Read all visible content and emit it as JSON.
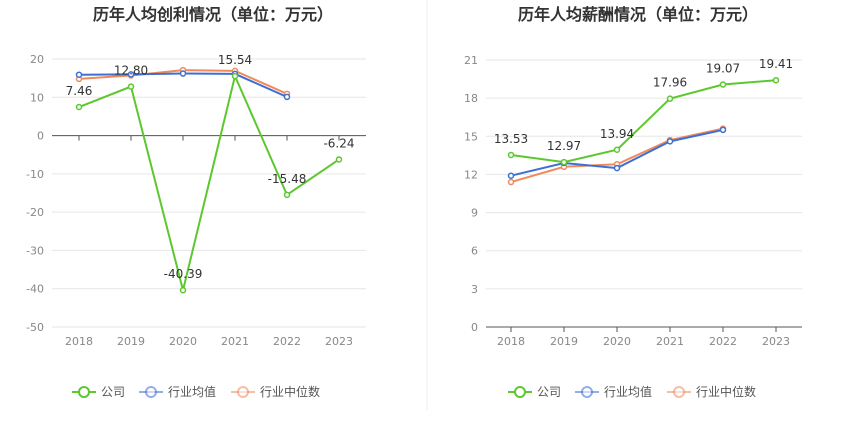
{
  "chart_data": [
    {
      "type": "line",
      "title": "历年人均创利情况（单位：万元）",
      "categories": [
        "2018",
        "2019",
        "2020",
        "2021",
        "2022",
        "2023"
      ],
      "ylim": [
        -50,
        20
      ],
      "yticks": [
        "20",
        "10",
        "0",
        "-10",
        "-20",
        "-30",
        "-40",
        "-50"
      ],
      "grid": true,
      "legend_position": "bottom",
      "series": [
        {
          "name": "公司",
          "color": "#5cc82e",
          "values": [
            7.46,
            12.8,
            -40.39,
            15.54,
            -15.48,
            -6.24
          ],
          "labels": [
            "7.46",
            "12.80",
            "-40.39",
            "15.54",
            "-15.48",
            "-6.24"
          ]
        },
        {
          "name": "行业均值",
          "color": "#3f6fd2",
          "values": [
            15.9,
            16.0,
            16.2,
            16.1,
            10.1,
            null
          ]
        },
        {
          "name": "行业中位数",
          "color": "#f08a5d",
          "values": [
            14.8,
            15.7,
            17.1,
            16.9,
            10.9,
            null
          ]
        }
      ]
    },
    {
      "type": "line",
      "title": "历年人均薪酬情况（单位：万元）",
      "categories": [
        "2018",
        "2019",
        "2020",
        "2021",
        "2022",
        "2023"
      ],
      "ylim": [
        0,
        21
      ],
      "yticks": [
        "21",
        "18",
        "15",
        "12",
        "9",
        "6",
        "3",
        "0"
      ],
      "grid": true,
      "legend_position": "bottom",
      "series": [
        {
          "name": "公司",
          "color": "#5cc82e",
          "values": [
            13.53,
            12.97,
            13.94,
            17.96,
            19.07,
            19.41
          ],
          "labels": [
            "13.53",
            "12.97",
            "13.94",
            "17.96",
            "19.07",
            "19.41"
          ]
        },
        {
          "name": "行业均值",
          "color": "#3f6fd2",
          "values": [
            11.9,
            12.9,
            12.5,
            14.6,
            15.5,
            null
          ]
        },
        {
          "name": "行业中位数",
          "color": "#f08a5d",
          "values": [
            11.4,
            12.6,
            12.8,
            14.7,
            15.6,
            null
          ]
        }
      ]
    }
  ]
}
